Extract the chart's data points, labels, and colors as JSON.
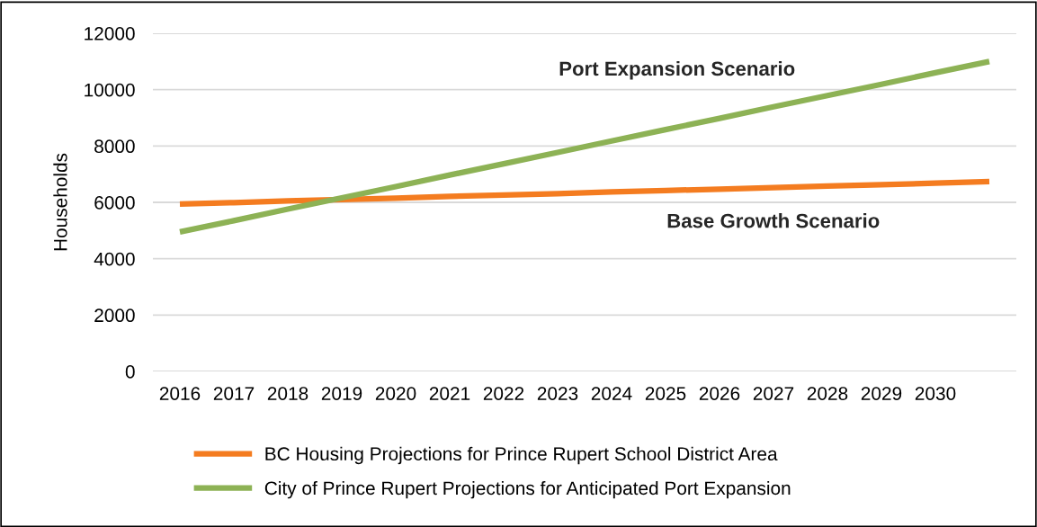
{
  "chart_data": {
    "type": "line",
    "ylabel": "Households",
    "categories": [
      "2016",
      "2017",
      "2018",
      "2019",
      "2020",
      "2021",
      "2022",
      "2023",
      "2024",
      "2025",
      "2026",
      "2027",
      "2028",
      "2029",
      "2030",
      null
    ],
    "series": [
      {
        "name": "BC Housing Projections for Prince Rupert School District Area",
        "color": "#f47c20",
        "values": [
          5940,
          5990,
          6050,
          6100,
          6150,
          6210,
          6260,
          6310,
          6370,
          6420,
          6470,
          6520,
          6580,
          6630,
          6680,
          6735
        ]
      },
      {
        "name": "City of Prince Rupert Projections for Anticipated Port Expansion",
        "color": "#8db255",
        "values": [
          4950,
          5350,
          5760,
          6160,
          6560,
          6970,
          7370,
          7770,
          8180,
          8580,
          8980,
          9390,
          9790,
          10190,
          10600,
          11000
        ]
      }
    ],
    "annotations": [
      "Port Expansion Scenario",
      "Base Growth Scenario"
    ],
    "ylim": [
      0,
      12000
    ],
    "yticks": [
      0,
      2000,
      4000,
      6000,
      8000,
      10000,
      12000
    ],
    "grid": "y",
    "legend": "bottom",
    "marker": "none",
    "line_style": "solid"
  }
}
